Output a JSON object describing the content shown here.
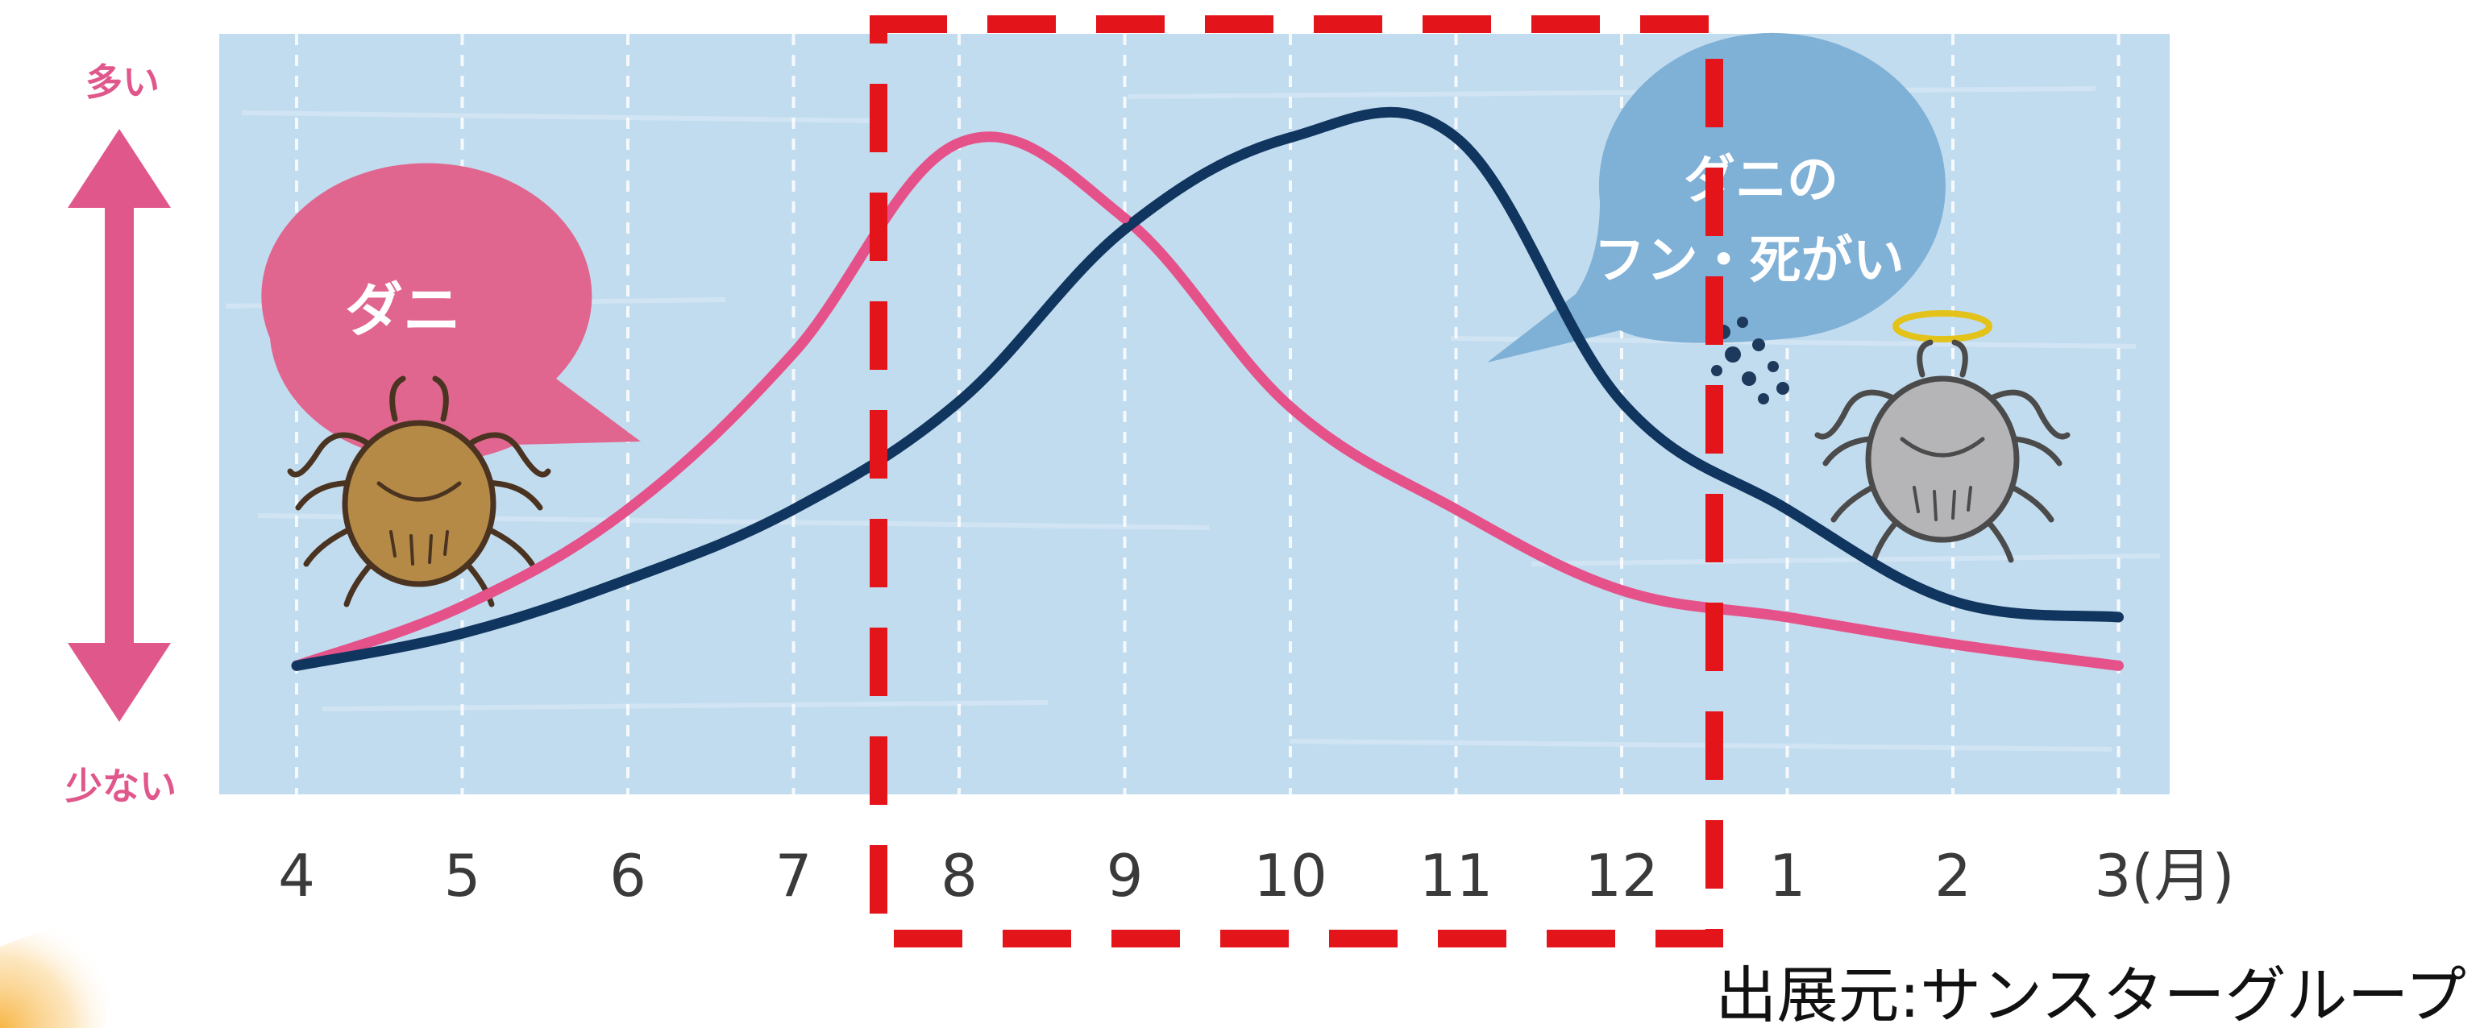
{
  "y_axis": {
    "top_label": "多い",
    "bottom_label": "少ない"
  },
  "bubbles": {
    "mites_label": "ダニ",
    "droppings_label_line1": "ダニの",
    "droppings_label_line2": "フン・死がい"
  },
  "source": "出展元:サンスターグループ",
  "colors": {
    "plot_background": "#c2dcef",
    "mites_series": "#e5528a",
    "droppings_series": "#10355f",
    "highlight_box": "#e4141b",
    "pink_bubble": "#e0668f",
    "blue_bubble": "#7fb0d6"
  },
  "chart_data": {
    "type": "line",
    "categories": [
      "4",
      "5",
      "6",
      "7",
      "8",
      "9",
      "10",
      "11",
      "12",
      "1",
      "2",
      "3(月)"
    ],
    "y_scale": "relative (少ない to 多い)",
    "ylim": [
      0,
      100
    ],
    "grid": "vertical dashed lines at each month",
    "series": [
      {
        "name": "ダニ",
        "color": "#e5528a",
        "values": [
          1,
          12,
          30,
          59,
          98,
          84,
          49,
          30,
          15,
          10,
          5,
          1
        ]
      },
      {
        "name": "ダニのフン・死がい",
        "color": "#10355f",
        "values": [
          1,
          7,
          17,
          30,
          50,
          82,
          99,
          99,
          50,
          30,
          13,
          10
        ]
      }
    ],
    "highlight": {
      "from": "8",
      "to": "12",
      "style": "red dashed rectangle"
    }
  }
}
